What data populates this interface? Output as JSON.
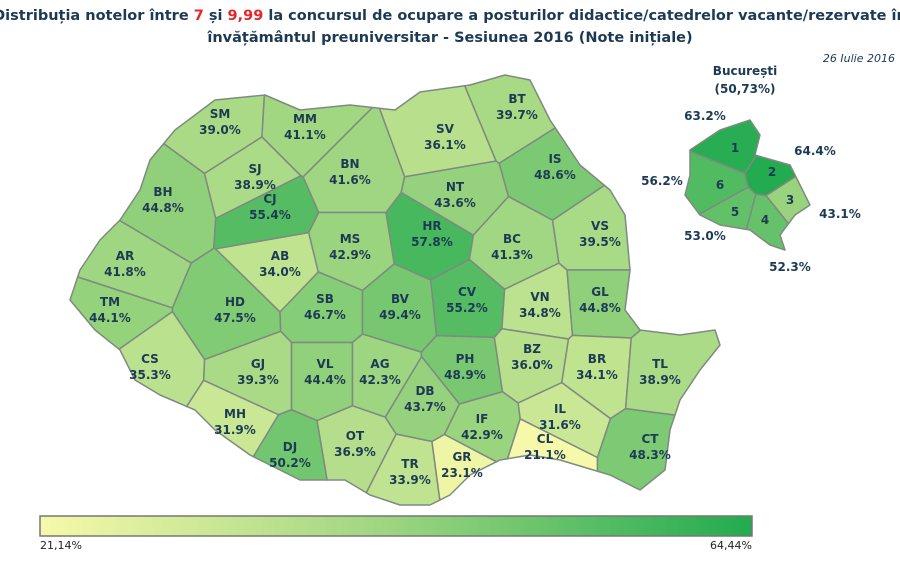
{
  "title": {
    "part1": "Distribuția notelor între ",
    "low": "7",
    "part2": " și ",
    "high": "9,99",
    "part3": " la concursul de ocupare a posturilor didactice/catedrelor vacante/rezervate în",
    "line2": "învățământul preuniversitar - Sesiunea 2016 (Note inițiale)"
  },
  "date": "26 Iulie 2016",
  "bucharest": {
    "name": "București",
    "total": "(50,73%)",
    "sectors": [
      {
        "code": "1",
        "value": 63.2,
        "label": "63.2%"
      },
      {
        "code": "2",
        "value": 64.4,
        "label": "64.4%"
      },
      {
        "code": "3",
        "value": 43.1,
        "label": "43.1%"
      },
      {
        "code": "4",
        "value": 52.3,
        "label": "52.3%"
      },
      {
        "code": "5",
        "value": 53.0,
        "label": "53.0%"
      },
      {
        "code": "6",
        "value": 56.2,
        "label": "56.2%"
      }
    ]
  },
  "counties": [
    {
      "code": "SM",
      "value": 39.0,
      "label": "39.0%"
    },
    {
      "code": "MM",
      "value": 41.1,
      "label": "41.1%"
    },
    {
      "code": "BT",
      "value": 39.7,
      "label": "39.7%"
    },
    {
      "code": "SV",
      "value": 36.1,
      "label": "36.1%"
    },
    {
      "code": "BH",
      "value": 44.8,
      "label": "44.8%"
    },
    {
      "code": "SJ",
      "value": 38.9,
      "label": "38.9%"
    },
    {
      "code": "CJ",
      "value": 55.4,
      "label": "55.4%"
    },
    {
      "code": "BN",
      "value": 41.6,
      "label": "41.6%"
    },
    {
      "code": "NT",
      "value": 43.6,
      "label": "43.6%"
    },
    {
      "code": "IS",
      "value": 48.6,
      "label": "48.6%"
    },
    {
      "code": "AR",
      "value": 41.8,
      "label": "41.8%"
    },
    {
      "code": "AB",
      "value": 34.0,
      "label": "34.0%"
    },
    {
      "code": "MS",
      "value": 42.9,
      "label": "42.9%"
    },
    {
      "code": "HR",
      "value": 57.8,
      "label": "57.8%"
    },
    {
      "code": "BC",
      "value": 41.3,
      "label": "41.3%"
    },
    {
      "code": "VS",
      "value": 39.5,
      "label": "39.5%"
    },
    {
      "code": "TM",
      "value": 44.1,
      "label": "44.1%"
    },
    {
      "code": "HD",
      "value": 47.5,
      "label": "47.5%"
    },
    {
      "code": "SB",
      "value": 46.7,
      "label": "46.7%"
    },
    {
      "code": "BV",
      "value": 49.4,
      "label": "49.4%"
    },
    {
      "code": "CV",
      "value": 55.2,
      "label": "55.2%"
    },
    {
      "code": "VN",
      "value": 34.8,
      "label": "34.8%"
    },
    {
      "code": "GL",
      "value": 44.8,
      "label": "44.8%"
    },
    {
      "code": "CS",
      "value": 35.3,
      "label": "35.3%"
    },
    {
      "code": "GJ",
      "value": 39.3,
      "label": "39.3%"
    },
    {
      "code": "VL",
      "value": 44.4,
      "label": "44.4%"
    },
    {
      "code": "AG",
      "value": 42.3,
      "label": "42.3%"
    },
    {
      "code": "PH",
      "value": 48.9,
      "label": "48.9%"
    },
    {
      "code": "BZ",
      "value": 36.0,
      "label": "36.0%"
    },
    {
      "code": "BR",
      "value": 34.1,
      "label": "34.1%"
    },
    {
      "code": "TL",
      "value": 38.9,
      "label": "38.9%"
    },
    {
      "code": "MH",
      "value": 31.9,
      "label": "31.9%"
    },
    {
      "code": "DJ",
      "value": 50.2,
      "label": "50.2%"
    },
    {
      "code": "OT",
      "value": 36.9,
      "label": "36.9%"
    },
    {
      "code": "DB",
      "value": 43.7,
      "label": "43.7%"
    },
    {
      "code": "TR",
      "value": 33.9,
      "label": "33.9%"
    },
    {
      "code": "IF",
      "value": 42.9,
      "label": "42.9%"
    },
    {
      "code": "GR",
      "value": 23.1,
      "label": "23.1%"
    },
    {
      "code": "CL",
      "value": 21.1,
      "label": "21.1%"
    },
    {
      "code": "IL",
      "value": 31.6,
      "label": "31.6%"
    },
    {
      "code": "CT",
      "value": 48.3,
      "label": "48.3%"
    }
  ],
  "legend": {
    "min": {
      "value": 21.14,
      "label": "21,14%"
    },
    "max": {
      "value": 64.44,
      "label": "64,44%"
    }
  },
  "color_scale": [
    "#f6f9aa",
    "#9bd47f",
    "#22ab4f"
  ]
}
